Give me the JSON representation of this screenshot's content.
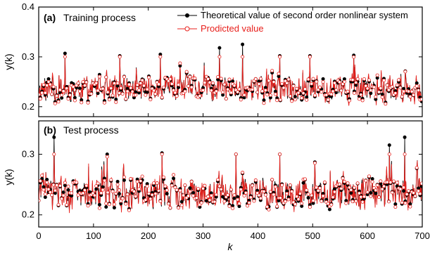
{
  "chart_data": [
    {
      "type": "line",
      "panel_label": "(a)",
      "title": "Training process",
      "ylabel": "y(k)",
      "xlabel": "",
      "xlim": [
        0,
        700
      ],
      "ylim": [
        0.18,
        0.4
      ],
      "yticks": [
        0.2,
        0.3,
        0.4
      ],
      "ytick_labels": [
        "0.2",
        "0.3",
        "0.4"
      ],
      "legend": "top-right",
      "noise_seed": 11,
      "series": [
        {
          "name": "Theoretical value of second order nonlinear system",
          "color": "#000000",
          "marker": "filled-circle",
          "values_mean": 0.235,
          "values_min": 0.195,
          "values_max": 0.325
        },
        {
          "name": "Prodicted value",
          "color": "#e8201c",
          "marker": "open-circle",
          "values_mean": 0.235,
          "values_min": 0.2,
          "values_max": 0.3
        }
      ],
      "key_points": [
        {
          "x": 48,
          "y": 0.307
        },
        {
          "x": 148,
          "y": 0.302
        },
        {
          "x": 222,
          "y": 0.305
        },
        {
          "x": 330,
          "y": 0.318
        },
        {
          "x": 372,
          "y": 0.325
        },
        {
          "x": 440,
          "y": 0.302
        },
        {
          "x": 495,
          "y": 0.302
        },
        {
          "x": 575,
          "y": 0.303
        }
      ]
    },
    {
      "type": "line",
      "panel_label": "(b)",
      "title": "Test process",
      "ylabel": "y(k)",
      "xlabel": "k",
      "xlim": [
        0,
        700
      ],
      "ylim": [
        0.18,
        0.355
      ],
      "yticks": [
        0.2,
        0.3
      ],
      "ytick_labels": [
        "0.2",
        "0.3"
      ],
      "xticks": [
        0,
        100,
        200,
        300,
        400,
        500,
        600,
        700
      ],
      "xtick_labels": [
        "0",
        "100",
        "200",
        "300",
        "400",
        "500",
        "600",
        "700"
      ],
      "noise_seed": 29,
      "series": [
        {
          "name": "Theoretical value of second order nonlinear system",
          "color": "#000000",
          "marker": "filled-circle",
          "values_mean": 0.235,
          "values_min": 0.195,
          "values_max": 0.328
        },
        {
          "name": "Prodicted value",
          "color": "#e8201c",
          "marker": "open-circle",
          "values_mean": 0.235,
          "values_min": 0.19,
          "values_max": 0.3
        }
      ],
      "key_points": [
        {
          "x": 28,
          "y": 0.328
        },
        {
          "x": 125,
          "y": 0.3
        },
        {
          "x": 225,
          "y": 0.302
        },
        {
          "x": 360,
          "y": 0.3
        },
        {
          "x": 440,
          "y": 0.3
        },
        {
          "x": 640,
          "y": 0.315
        },
        {
          "x": 668,
          "y": 0.328
        }
      ]
    }
  ]
}
